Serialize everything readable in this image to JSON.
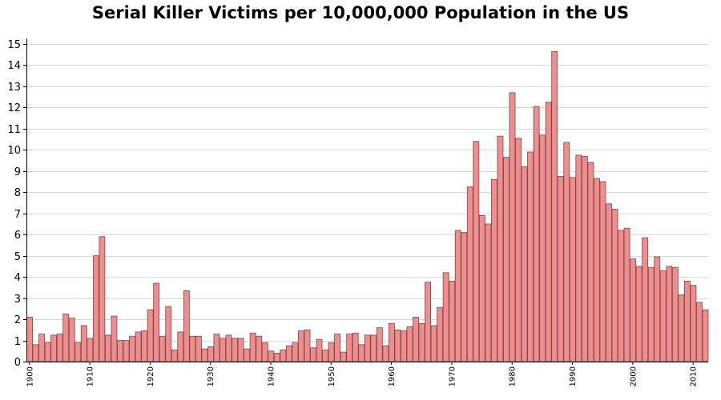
{
  "chart_data": {
    "type": "bar",
    "title": "Serial Killer Victims per 10,000,000 Population in the US",
    "xlabel": "",
    "ylabel": "",
    "ylim": [
      0,
      15
    ],
    "yticks": [
      0,
      1,
      2,
      3,
      4,
      5,
      6,
      7,
      8,
      9,
      10,
      11,
      12,
      13,
      14,
      15
    ],
    "xticks": [
      1900,
      1910,
      1920,
      1930,
      1940,
      1950,
      1960,
      1970,
      1980,
      1990,
      2000,
      2010
    ],
    "grid": true,
    "bar_color": "#f78b8b",
    "bar_edge_color": "#555555",
    "grid_color": "#d9d9d9",
    "years": [
      1900,
      1901,
      1902,
      1903,
      1904,
      1905,
      1906,
      1907,
      1908,
      1909,
      1910,
      1911,
      1912,
      1913,
      1914,
      1915,
      1916,
      1917,
      1918,
      1919,
      1920,
      1921,
      1922,
      1923,
      1924,
      1925,
      1926,
      1927,
      1928,
      1929,
      1930,
      1931,
      1932,
      1933,
      1934,
      1935,
      1936,
      1937,
      1938,
      1939,
      1940,
      1941,
      1942,
      1943,
      1944,
      1945,
      1946,
      1947,
      1948,
      1949,
      1950,
      1951,
      1952,
      1953,
      1954,
      1955,
      1956,
      1957,
      1958,
      1959,
      1960,
      1961,
      1962,
      1963,
      1964,
      1965,
      1966,
      1967,
      1968,
      1969,
      1970,
      1971,
      1972,
      1973,
      1974,
      1975,
      1976,
      1977,
      1978,
      1979,
      1980,
      1981,
      1982,
      1983,
      1984,
      1985,
      1986,
      1987,
      1988,
      1989,
      1990,
      1991,
      1992,
      1993,
      1994,
      1995,
      1996,
      1997,
      1998,
      1999,
      2000,
      2001,
      2002,
      2003,
      2004,
      2005,
      2006,
      2007,
      2008,
      2009,
      2010,
      2011,
      2012
    ],
    "values": [
      2.1,
      0.8,
      1.3,
      0.9,
      1.25,
      1.3,
      2.25,
      2.05,
      0.9,
      1.7,
      1.1,
      5.0,
      5.9,
      1.25,
      2.15,
      1.0,
      1.0,
      1.2,
      1.4,
      1.45,
      2.45,
      3.7,
      1.2,
      2.6,
      0.55,
      1.4,
      3.35,
      1.2,
      1.2,
      0.6,
      0.7,
      1.3,
      1.1,
      1.25,
      1.1,
      1.1,
      0.6,
      1.35,
      1.2,
      0.9,
      0.5,
      0.4,
      0.55,
      0.75,
      0.9,
      1.45,
      1.5,
      0.65,
      1.05,
      0.55,
      0.9,
      1.3,
      0.45,
      1.3,
      1.35,
      0.8,
      1.25,
      1.25,
      1.6,
      0.75,
      1.8,
      1.5,
      1.45,
      1.65,
      2.1,
      1.8,
      3.75,
      1.7,
      2.55,
      4.2,
      3.8,
      6.2,
      6.1,
      8.25,
      10.4,
      6.9,
      6.5,
      8.6,
      10.65,
      9.65,
      12.7,
      10.55,
      9.2,
      9.9,
      12.05,
      10.7,
      12.25,
      14.65,
      8.75,
      10.35,
      8.7,
      9.75,
      9.7,
      9.4,
      8.65,
      8.5,
      7.45,
      7.2,
      6.2,
      6.3,
      4.85,
      4.5,
      5.85,
      4.45,
      4.95,
      4.3,
      4.5,
      4.45,
      3.15,
      3.8,
      3.6,
      2.8,
      2.45
    ]
  }
}
